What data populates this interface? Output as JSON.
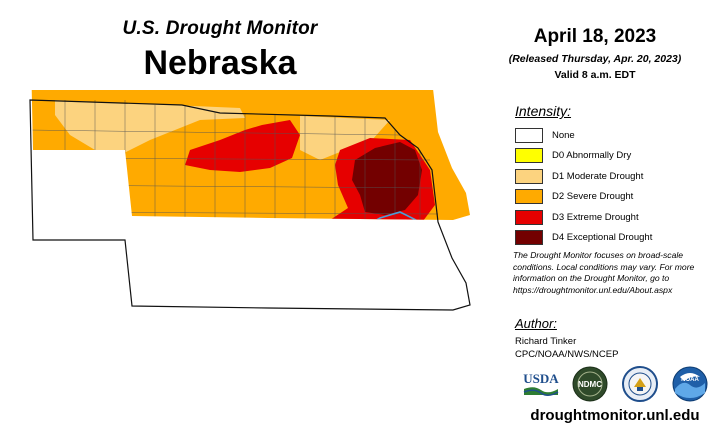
{
  "header": {
    "super_title": "U.S. Drought Monitor",
    "state": "Nebraska",
    "date": "April 18, 2023",
    "released": "(Released Thursday, Apr. 20, 2023)",
    "valid": "Valid 8 a.m. EDT"
  },
  "legend": {
    "title": "Intensity:",
    "items": [
      {
        "label": "None",
        "color": "#ffffff"
      },
      {
        "label": "D0 Abnormally Dry",
        "color": "#ffff00"
      },
      {
        "label": "D1 Moderate Drought",
        "color": "#fcd37f"
      },
      {
        "label": "D2 Severe Drought",
        "color": "#ffaa00"
      },
      {
        "label": "D3 Extreme Drought",
        "color": "#e60000"
      },
      {
        "label": "D4 Exceptional Drought",
        "color": "#730000"
      }
    ]
  },
  "disclaimer": "The Drought Monitor focuses on broad-scale conditions. Local conditions may vary. For more information on the Drought Monitor, go to https://droughtmonitor.unl.edu/About.aspx",
  "author": {
    "title": "Author:",
    "name": "Richard Tinker",
    "org": "CPC/NOAA/NWS/NCEP"
  },
  "logos": {
    "usda": "USDA",
    "ndmc": "NDMC",
    "noaa": "NOAA"
  },
  "site_url": "droughtmonitor.unl.edu",
  "colors": {
    "river": "#4a9fd8",
    "county_line": "#555555",
    "state_border": "#111111"
  }
}
